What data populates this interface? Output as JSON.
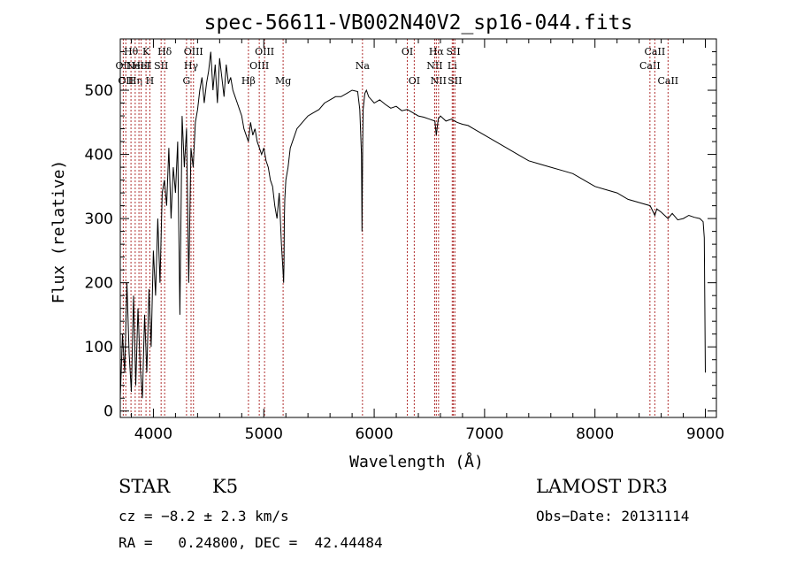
{
  "chart_data": {
    "type": "line",
    "title": "spec-56611-VB002N40V2_sp16-044.fits",
    "xlabel": "Wavelength (Å)",
    "ylabel": "Flux (relative)",
    "xlim": [
      3700,
      9100
    ],
    "ylim": [
      -10,
      580
    ],
    "x_ticks": [
      4000,
      5000,
      6000,
      7000,
      8000,
      9000
    ],
    "y_ticks": [
      0,
      100,
      200,
      300,
      400,
      500
    ],
    "grid": false,
    "series": [
      {
        "x": [
          3700,
          3720,
          3740,
          3760,
          3780,
          3800,
          3820,
          3840,
          3860,
          3880,
          3900,
          3920,
          3940,
          3960,
          3980,
          4000,
          4020,
          4040,
          4060,
          4080,
          4100,
          4120,
          4140,
          4160,
          4180,
          4200,
          4220,
          4240,
          4260,
          4280,
          4300,
          4320,
          4340,
          4360,
          4380,
          4400,
          4420,
          4440,
          4460,
          4480,
          4500,
          4520,
          4540,
          4560,
          4580,
          4600,
          4620,
          4640,
          4660,
          4680,
          4700,
          4720,
          4740,
          4760,
          4780,
          4800,
          4820,
          4840,
          4860,
          4880,
          4900,
          4920,
          4940,
          4960,
          4980,
          5000,
          5020,
          5040,
          5060,
          5080,
          5100,
          5120,
          5140,
          5160,
          5170,
          5180,
          5183,
          5186,
          5190,
          5200,
          5220,
          5240,
          5260,
          5280,
          5300,
          5350,
          5400,
          5450,
          5500,
          5550,
          5600,
          5650,
          5700,
          5750,
          5800,
          5850,
          5870,
          5885,
          5890,
          5896,
          5900,
          5915,
          5930,
          5950,
          6000,
          6050,
          6100,
          6150,
          6200,
          6250,
          6300,
          6350,
          6400,
          6450,
          6500,
          6550,
          6563,
          6580,
          6600,
          6650,
          6700,
          6750,
          6800,
          6850,
          6900,
          7000,
          7100,
          7200,
          7300,
          7400,
          7500,
          7600,
          7700,
          7800,
          7900,
          8000,
          8100,
          8200,
          8300,
          8400,
          8500,
          8542,
          8560,
          8600,
          8662,
          8700,
          8750,
          8800,
          8850,
          8900,
          8950,
          8980,
          8990,
          9000
        ],
        "values": [
          20,
          120,
          60,
          200,
          90,
          30,
          180,
          40,
          160,
          70,
          20,
          150,
          60,
          190,
          100,
          250,
          180,
          300,
          200,
          340,
          360,
          320,
          410,
          300,
          380,
          340,
          420,
          150,
          460,
          380,
          440,
          200,
          410,
          380,
          450,
          470,
          500,
          520,
          480,
          510,
          530,
          560,
          500,
          540,
          480,
          550,
          520,
          490,
          540,
          510,
          520,
          500,
          490,
          480,
          470,
          460,
          440,
          430,
          420,
          450,
          430,
          440,
          420,
          410,
          400,
          410,
          390,
          380,
          360,
          350,
          320,
          300,
          340,
          260,
          230,
          200,
          230,
          300,
          330,
          360,
          380,
          410,
          420,
          430,
          440,
          450,
          460,
          465,
          470,
          480,
          485,
          490,
          490,
          495,
          500,
          498,
          470,
          400,
          280,
          420,
          470,
          495,
          500,
          490,
          480,
          485,
          478,
          472,
          475,
          468,
          470,
          465,
          460,
          458,
          455,
          452,
          430,
          455,
          460,
          452,
          455,
          450,
          447,
          445,
          440,
          430,
          420,
          410,
          400,
          390,
          385,
          380,
          375,
          370,
          360,
          350,
          345,
          340,
          330,
          325,
          320,
          305,
          315,
          310,
          300,
          308,
          298,
          300,
          305,
          302,
          300,
          295,
          270,
          60
        ]
      }
    ],
    "lines": [
      {
        "wavelength": 3727,
        "label": "OII",
        "row": 2
      },
      {
        "wavelength": 3750,
        "label": "OII",
        "row": 3
      },
      {
        "wavelength": 3797,
        "label": "Hθ",
        "row": 1
      },
      {
        "wavelength": 3835,
        "label": "Hη",
        "row": 3
      },
      {
        "wavelength": 3869,
        "label": "NeIII",
        "row": 2
      },
      {
        "wavelength": 3889,
        "label": "HeI",
        "row": 2
      },
      {
        "wavelength": 3933,
        "label": "K",
        "row": 1
      },
      {
        "wavelength": 3968,
        "label": "H",
        "row": 3
      },
      {
        "wavelength": 4070,
        "label": "SII",
        "row": 2
      },
      {
        "wavelength": 4102,
        "label": "Hδ",
        "row": 1
      },
      {
        "wavelength": 4300,
        "label": "G",
        "row": 3
      },
      {
        "wavelength": 4341,
        "label": "Hγ",
        "row": 2
      },
      {
        "wavelength": 4363,
        "label": "OIII",
        "row": 1
      },
      {
        "wavelength": 4861,
        "label": "Hβ",
        "row": 3
      },
      {
        "wavelength": 4959,
        "label": "OIII",
        "row": 2
      },
      {
        "wavelength": 5007,
        "label": "OIII",
        "row": 1
      },
      {
        "wavelength": 5175,
        "label": "Mg",
        "row": 3
      },
      {
        "wavelength": 5894,
        "label": "Na",
        "row": 2
      },
      {
        "wavelength": 6300,
        "label": "OI",
        "row": 1
      },
      {
        "wavelength": 6363,
        "label": "OI",
        "row": 3
      },
      {
        "wavelength": 6548,
        "label": "NII",
        "row": 2
      },
      {
        "wavelength": 6563,
        "label": "Hα",
        "row": 1
      },
      {
        "wavelength": 6583,
        "label": "NII",
        "row": 3
      },
      {
        "wavelength": 6707,
        "label": "Li",
        "row": 2
      },
      {
        "wavelength": 6717,
        "label": "SII",
        "row": 1
      },
      {
        "wavelength": 6731,
        "label": "SII",
        "row": 3
      },
      {
        "wavelength": 8498,
        "label": "CaII",
        "row": 2
      },
      {
        "wavelength": 8542,
        "label": "CaII",
        "row": 1
      },
      {
        "wavelength": 8662,
        "label": "CaII",
        "row": 3
      }
    ]
  },
  "info": {
    "class_label": "STAR",
    "subclass": "K5",
    "survey": "LAMOST DR3",
    "cz": "cz = −8.2 ± 2.3 km/s",
    "obs_date": "Obs−Date: 20131114",
    "coords": "RA =   0.24800, DEC =  42.44484"
  }
}
